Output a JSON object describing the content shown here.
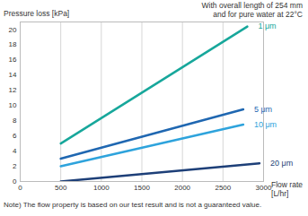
{
  "chart_data": {
    "type": "line",
    "y_label": "Pressure loss [kPa]",
    "x_label": "Flow rate\n[L/hr]",
    "annotation": "With overall length of 254 mm\nand for pure water at 22°C",
    "note": "Note) The flow property is based on our test result and is not a guaranteed value.",
    "xlim": [
      0,
      3000
    ],
    "xticks": [
      0,
      500,
      1000,
      1500,
      2000,
      2500,
      3000
    ],
    "ylim": [
      0,
      21
    ],
    "yticks": [
      0,
      2,
      4,
      6,
      8,
      10,
      12,
      14,
      16,
      18,
      20
    ],
    "grid": true,
    "data_labels": true,
    "series": [
      {
        "name": "1 μm",
        "color": "#17a79b",
        "x": [
          500,
          2800
        ],
        "values": [
          5,
          20.4
        ]
      },
      {
        "name": "5 μm",
        "color": "#1f67b1",
        "x": [
          500,
          2750
        ],
        "values": [
          3,
          9.5
        ]
      },
      {
        "name": "10 μm",
        "color": "#2ea3dc",
        "x": [
          500,
          2750
        ],
        "values": [
          2,
          7.5
        ]
      },
      {
        "name": "20 μm",
        "color": "#1d3f78",
        "x": [
          500,
          2950
        ],
        "values": [
          0,
          2.4
        ]
      }
    ]
  }
}
